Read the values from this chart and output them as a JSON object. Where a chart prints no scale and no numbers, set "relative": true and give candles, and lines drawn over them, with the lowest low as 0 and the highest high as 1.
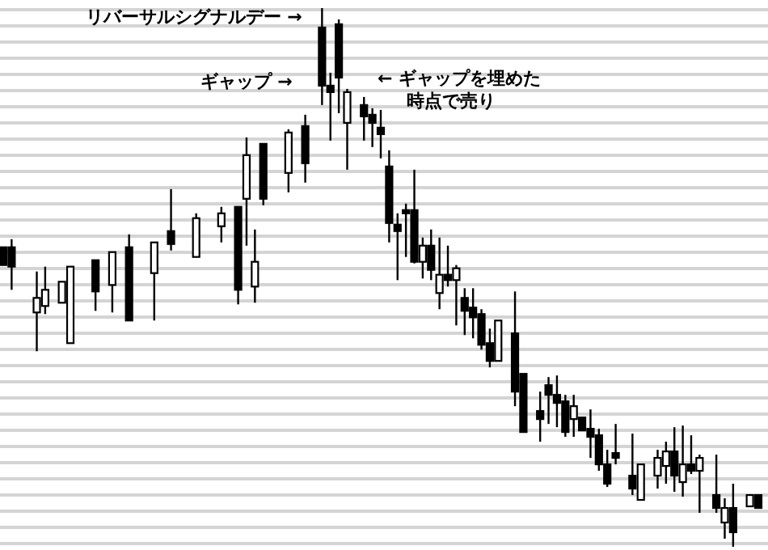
{
  "chart_data": {
    "type": "candlestick",
    "relative": true,
    "grid": true,
    "categories": [
      null,
      null,
      null,
      null,
      null,
      null,
      null,
      null,
      null,
      null,
      null,
      null,
      null,
      null,
      null,
      null,
      null,
      null,
      null,
      null,
      null,
      null,
      null,
      null,
      null,
      null,
      null,
      null,
      null,
      null,
      null,
      null,
      null,
      null,
      null,
      null,
      null,
      null,
      null,
      null,
      null,
      null,
      null,
      null,
      null,
      null,
      null,
      null,
      null,
      null,
      null,
      null,
      null,
      null,
      null,
      null,
      null,
      null,
      null,
      null,
      null,
      null,
      null,
      null,
      null,
      null,
      null,
      null,
      null,
      null,
      null,
      null,
      null,
      null,
      null,
      null,
      null,
      null,
      null,
      null,
      null,
      null,
      null,
      null,
      null,
      null,
      null,
      null,
      null,
      null,
      null
    ],
    "ohlc": [
      [
        0.556,
        0.556,
        0.523,
        0.523
      ],
      [
        0.556,
        0.571,
        0.477,
        0.52
      ],
      null,
      null,
      [
        0.435,
        0.511,
        0.363,
        0.462
      ],
      [
        0.447,
        0.52,
        0.432,
        0.477
      ],
      null,
      [
        0.453,
        0.492,
        0.453,
        0.492
      ],
      [
        0.378,
        0.52,
        0.378,
        0.52
      ],
      null,
      null,
      [
        0.532,
        0.532,
        0.438,
        0.474
      ],
      null,
      [
        0.486,
        0.547,
        0.435,
        0.547
      ],
      null,
      [
        0.556,
        0.58,
        0.42,
        0.42
      ],
      null,
      null,
      [
        0.508,
        0.565,
        0.42,
        0.565
      ],
      null,
      [
        0.586,
        0.664,
        0.55,
        0.562
      ],
      null,
      null,
      [
        0.538,
        0.619,
        0.538,
        0.61
      ],
      null,
      null,
      [
        0.595,
        0.631,
        0.565,
        0.619
      ],
      null,
      [
        0.631,
        0.631,
        0.45,
        0.477
      ],
      [
        0.646,
        0.76,
        0.559,
        0.727
      ],
      [
        0.483,
        0.589,
        0.453,
        0.529
      ],
      [
        0.748,
        0.748,
        0.634,
        0.646
      ],
      null,
      null,
      [
        0.694,
        0.775,
        0.658,
        0.769
      ],
      null,
      [
        0.781,
        0.802,
        0.676,
        0.712
      ],
      null,
      [
        0.964,
        1,
        0.82,
        0.856
      ],
      [
        0.856,
        0.88,
        0.754,
        0.844
      ],
      [
        0.97,
        0.979,
        0.805,
        0.871
      ],
      [
        0.787,
        0.85,
        0.7,
        0.844
      ],
      null,
      [
        0.82,
        0.835,
        0.754,
        0.799
      ],
      [
        0.802,
        0.814,
        0.742,
        0.787
      ],
      [
        0.778,
        0.811,
        0.721,
        0.766
      ],
      [
        0.706,
        0.736,
        0.565,
        0.601
      ],
      [
        0.598,
        0.619,
        0.495,
        0.586
      ],
      [
        0.625,
        0.637,
        0.538,
        0.619
      ],
      [
        0.625,
        0.7,
        0.526,
        0.529
      ],
      [
        0.529,
        0.574,
        0.498,
        0.559
      ],
      [
        0.559,
        0.589,
        0.495,
        0.514
      ],
      [
        0.471,
        0.574,
        0.441,
        0.505
      ],
      [
        0.505,
        0.559,
        0.483,
        0.495
      ],
      [
        0.495,
        0.523,
        0.411,
        0.517
      ],
      [
        0.462,
        0.48,
        0.393,
        0.438
      ],
      [
        0.444,
        0.48,
        0.387,
        0.426
      ],
      [
        0.432,
        0.441,
        0.366,
        0.375
      ],
      [
        0.378,
        0.405,
        0.333,
        0.345
      ],
      [
        0.345,
        0.42,
        0.345,
        0.42
      ],
      null,
      [
        0.396,
        0.474,
        0.261,
        0.288
      ],
      [
        0.321,
        0.321,
        0.213,
        0.213
      ],
      null,
      [
        0.252,
        0.288,
        0.195,
        0.237
      ],
      [
        0.3,
        0.315,
        0.228,
        0.282
      ],
      [
        0.282,
        0.318,
        0.222,
        0.267
      ],
      [
        0.27,
        0.282,
        0.204,
        0.213
      ],
      [
        0.237,
        0.282,
        0.204,
        0.261
      ],
      [
        0.24,
        0.24,
        0.216,
        0.216
      ],
      [
        0.219,
        0.255,
        0.165,
        0.204
      ],
      [
        0.207,
        0.219,
        0.141,
        0.153
      ],
      [
        0.153,
        0.18,
        0.111,
        0.117
      ],
      [
        0.174,
        0.228,
        0.153,
        0.165
      ],
      null,
      [
        0.132,
        0.21,
        0.096,
        0.108
      ],
      [
        0.087,
        0.153,
        0.087,
        0.153
      ],
      null,
      [
        0.132,
        0.18,
        0.108,
        0.165
      ],
      [
        0.15,
        0.195,
        0.117,
        0.177
      ],
      [
        0.177,
        0.222,
        0.102,
        0.132
      ],
      [
        0.12,
        0.225,
        0.093,
        0.153
      ],
      [
        0.153,
        0.207,
        0.135,
        0.141
      ],
      [
        0.141,
        0.171,
        0.063,
        0.165
      ],
      null,
      [
        0.096,
        0.171,
        0.063,
        0.072
      ],
      [
        0.045,
        0.09,
        0.015,
        0.072
      ],
      [
        0.072,
        0.117,
        0,
        0.027
      ],
      null,
      [
        0.075,
        0.096,
        0.075,
        0.096
      ],
      [
        0.096,
        0.096,
        0.072,
        0.072
      ]
    ],
    "annotations": [
      "リバーサルシグナルデー →",
      "ギャップ →",
      "← ギャップを埋めた時点で売り"
    ]
  }
}
